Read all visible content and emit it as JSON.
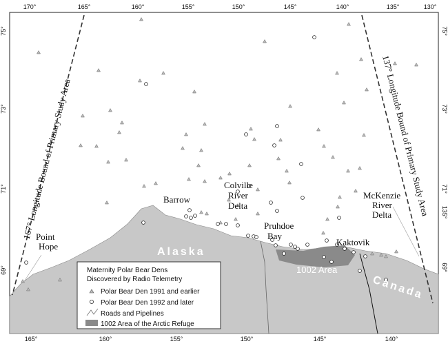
{
  "graticule": {
    "top_longitudes": [
      "170°",
      "165°",
      "160°",
      "155°",
      "150°",
      "145°",
      "140°",
      "135°",
      "130°"
    ],
    "bottom_longitudes": [
      "165°",
      "160°",
      "155°",
      "150°",
      "145°",
      "140°"
    ],
    "left_latitudes": [
      "75°",
      "73°",
      "71°",
      "69°"
    ],
    "right_latitudes": [
      "75°",
      "73°",
      "71°",
      "69°"
    ],
    "right_longitude": "135°"
  },
  "annotations": {
    "west_bound": "167° Longitude Bound of Primary Study Area",
    "east_bound": "137° Longitude Bound of Primary Study Area",
    "point_hope": [
      "Point",
      "Hope"
    ],
    "barrow": "Barrow",
    "colville": [
      "Colville",
      "River",
      "Delta"
    ],
    "pruhdoe": [
      "Pruhdoe",
      "Bay"
    ],
    "kaktovik": "Kaktovik",
    "mckenzie": [
      "McKenzie",
      "River",
      "Delta"
    ],
    "alaska": "Alaska",
    "canada": "Canada",
    "area_1002": "1002 Area"
  },
  "legend": {
    "title": [
      "Maternity Polar Bear Dens",
      "Discovered by Radio Telemetry"
    ],
    "items": [
      "Polar Bear Den 1991 and earlier",
      "Polar Bear Den 1992 and later",
      "Roads and Pipelines",
      "1002 Area of the Arctic Refuge"
    ]
  }
}
